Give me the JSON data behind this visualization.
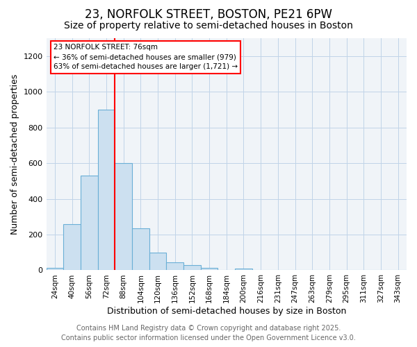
{
  "title1": "23, NORFOLK STREET, BOSTON, PE21 6PW",
  "title2": "Size of property relative to semi-detached houses in Boston",
  "xlabel": "Distribution of semi-detached houses by size in Boston",
  "ylabel": "Number of semi-detached properties",
  "categories": [
    "24sqm",
    "40sqm",
    "56sqm",
    "72sqm",
    "88sqm",
    "104sqm",
    "120sqm",
    "136sqm",
    "152sqm",
    "168sqm",
    "184sqm",
    "200sqm",
    "216sqm",
    "231sqm",
    "247sqm",
    "263sqm",
    "279sqm",
    "295sqm",
    "311sqm",
    "327sqm",
    "343sqm"
  ],
  "values": [
    15,
    260,
    530,
    900,
    600,
    235,
    100,
    45,
    30,
    15,
    0,
    10,
    0,
    0,
    0,
    0,
    0,
    0,
    0,
    0,
    0
  ],
  "bar_color": "#cce0f0",
  "bar_edge_color": "#6aafd6",
  "red_line_x": 3.5,
  "ylim": [
    0,
    1300
  ],
  "yticks": [
    0,
    200,
    400,
    600,
    800,
    1000,
    1200
  ],
  "annotation_title": "23 NORFOLK STREET: 76sqm",
  "annotation_line1": "← 36% of semi-detached houses are smaller (979)",
  "annotation_line2": "63% of semi-detached houses are larger (1,721) →",
  "footer1": "Contains HM Land Registry data © Crown copyright and database right 2025.",
  "footer2": "Contains public sector information licensed under the Open Government Licence v3.0.",
  "bg_color": "#f0f4f8",
  "grid_color": "#c0d4e8",
  "title1_fontsize": 12,
  "title2_fontsize": 10,
  "axis_label_fontsize": 9,
  "tick_fontsize": 7.5,
  "annotation_fontsize": 7.5,
  "footer_fontsize": 7
}
